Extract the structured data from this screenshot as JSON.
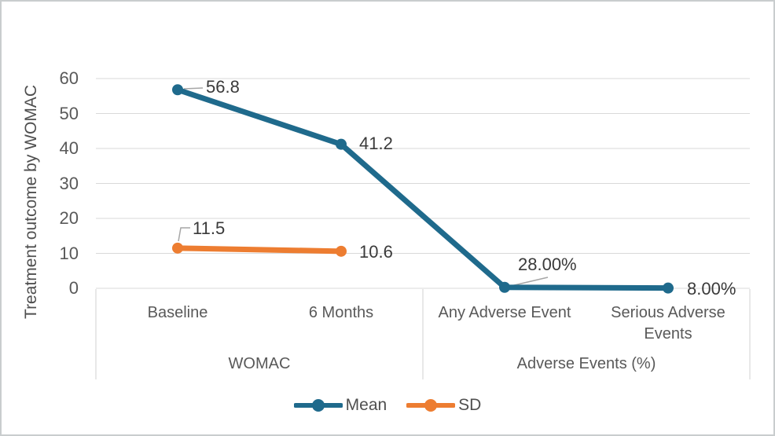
{
  "chart_data": {
    "type": "line",
    "title": "",
    "ylabel": "Treatment outcome by WOMAC",
    "xlabel": "",
    "ylim": [
      0,
      60
    ],
    "yticks": [
      0,
      10,
      20,
      30,
      40,
      50,
      60
    ],
    "grid": true,
    "legend_position": "bottom",
    "categories": [
      "Baseline",
      "6 Months",
      "Any Adverse Event",
      "Serious Adverse Events"
    ],
    "category_groups": [
      {
        "label": "WOMAC",
        "category_indexes": [
          0,
          1
        ]
      },
      {
        "label": "Adverse Events (%)",
        "category_indexes": [
          2,
          3
        ]
      }
    ],
    "series": [
      {
        "name": "Mean",
        "color": "#1F6A8C",
        "values": [
          56.8,
          41.2,
          0.28,
          0.08
        ],
        "data_labels": [
          "56.8",
          "41.2",
          "28.00%",
          "8.00%"
        ]
      },
      {
        "name": "SD",
        "color": "#ED7D31",
        "values": [
          11.5,
          10.6,
          null,
          null
        ],
        "data_labels": [
          "11.5",
          "10.6",
          null,
          null
        ]
      }
    ],
    "colors": {
      "gridline": "#D9D9D9",
      "band_border": "#D0D0D0",
      "leader_line": "#A6A6A6",
      "tick_text": "#595959",
      "data_label_text": "#3A3A3A"
    }
  }
}
